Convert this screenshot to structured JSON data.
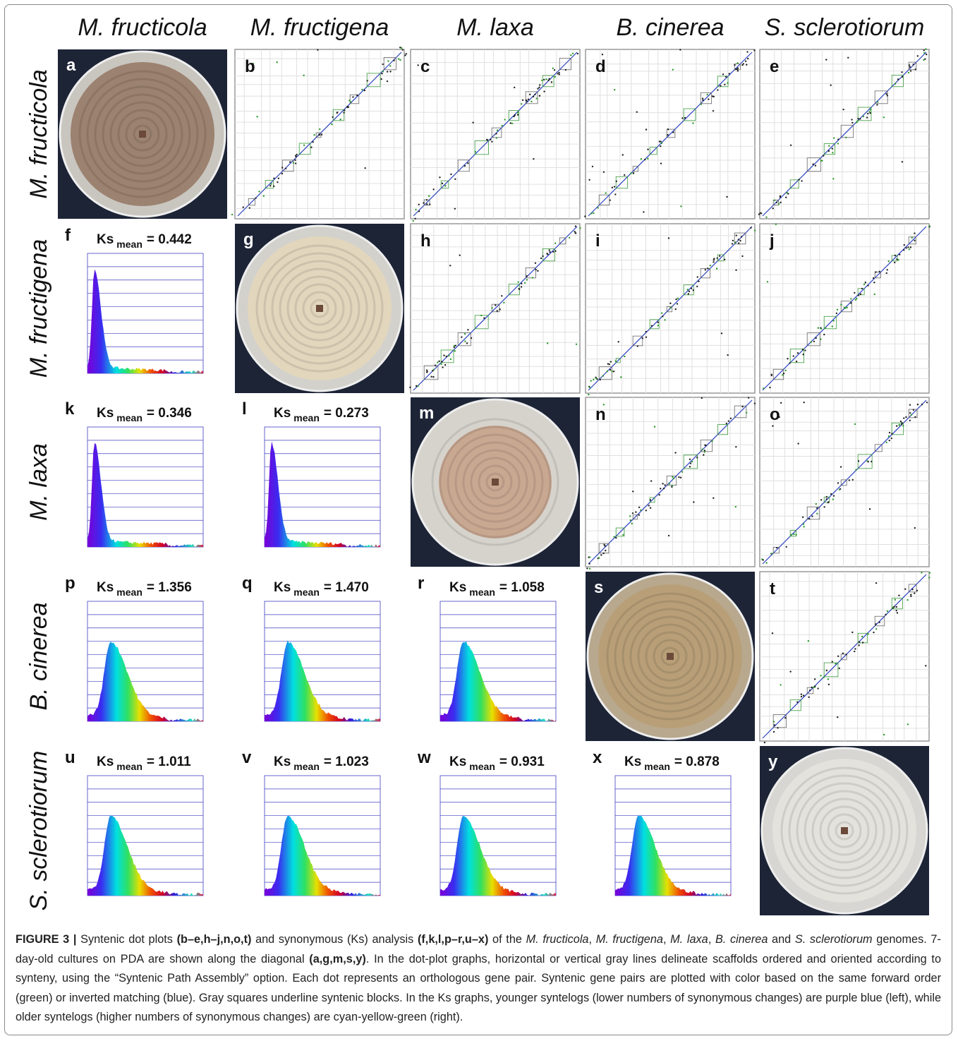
{
  "figure": {
    "column_headers": [
      "M. fructicola",
      "M. fructigena",
      "M. laxa",
      "B. cinerea",
      "S. sclerotiorum"
    ],
    "row_headers": [
      "M. fructicola",
      "M. fructigena",
      "M. laxa",
      "B. cinerea",
      "S. sclerotiorum"
    ],
    "panels": [
      [
        {
          "kind": "photo",
          "letter": "a",
          "plate": "#c9c6c0",
          "colony": "#9c8270"
        },
        {
          "kind": "dotplot",
          "letter": "b"
        },
        {
          "kind": "dotplot",
          "letter": "c"
        },
        {
          "kind": "dotplot",
          "letter": "d"
        },
        {
          "kind": "dotplot",
          "letter": "e"
        }
      ],
      [
        {
          "kind": "ks",
          "letter": "f",
          "symbol": "Ks",
          "sub": "mean",
          "value": "= 0.442"
        },
        {
          "kind": "photo",
          "letter": "g",
          "plate": "#d3d1cc",
          "colony": "#e2d6bd"
        },
        {
          "kind": "dotplot",
          "letter": "h"
        },
        {
          "kind": "dotplot",
          "letter": "i"
        },
        {
          "kind": "dotplot",
          "letter": "j"
        }
      ],
      [
        {
          "kind": "ks",
          "letter": "k",
          "symbol": "Ks",
          "sub": "mean",
          "value": "= 0.346"
        },
        {
          "kind": "ks",
          "letter": "l",
          "symbol": "Ks",
          "sub": "mean",
          "value": "= 0.273"
        },
        {
          "kind": "photo",
          "letter": "m",
          "plate": "#d6d3cd",
          "colony": "#c9a892"
        },
        {
          "kind": "dotplot",
          "letter": "n"
        },
        {
          "kind": "dotplot",
          "letter": "o"
        }
      ],
      [
        {
          "kind": "ks",
          "letter": "p",
          "symbol": "Ks",
          "sub": "mean",
          "value": "= 1.356"
        },
        {
          "kind": "ks",
          "letter": "q",
          "symbol": "Ks",
          "sub": "mean",
          "value": "= 1.470"
        },
        {
          "kind": "ks",
          "letter": "r",
          "symbol": "Ks",
          "sub": "mean",
          "value": "= 1.058"
        },
        {
          "kind": "photo",
          "letter": "s",
          "plate": "#b7a88e",
          "colony": "#b89f78"
        },
        {
          "kind": "dotplot",
          "letter": "t"
        }
      ],
      [
        {
          "kind": "ks",
          "letter": "u",
          "symbol": "Ks",
          "sub": "mean",
          "value": "= 1.011"
        },
        {
          "kind": "ks",
          "letter": "v",
          "symbol": "Ks",
          "sub": "mean",
          "value": "= 1.023"
        },
        {
          "kind": "ks",
          "letter": "w",
          "symbol": "Ks",
          "sub": "mean",
          "value": "= 0.931"
        },
        {
          "kind": "ks",
          "letter": "x",
          "symbol": "Ks",
          "sub": "mean",
          "value": "= 0.878"
        },
        {
          "kind": "photo",
          "letter": "y",
          "plate": "#d8d6d2",
          "colony": "#e4e2dc"
        }
      ]
    ],
    "caption": [
      {
        "text": "FIGURE 3 |",
        "style": "b"
      },
      {
        "text": " Syntenic dot plots ",
        "style": ""
      },
      {
        "text": "(b–e,h–j,n,o,t)",
        "style": "b"
      },
      {
        "text": " and synonymous (Ks) analysis ",
        "style": ""
      },
      {
        "text": "(f,k,l,p–r,u–x)",
        "style": "b"
      },
      {
        "text": " of the ",
        "style": ""
      },
      {
        "text": "M. fructicola",
        "style": "i"
      },
      {
        "text": ", ",
        "style": ""
      },
      {
        "text": "M. fructigena",
        "style": "i"
      },
      {
        "text": ", ",
        "style": ""
      },
      {
        "text": "M. laxa",
        "style": "i"
      },
      {
        "text": ", ",
        "style": ""
      },
      {
        "text": "B. cinerea",
        "style": "i"
      },
      {
        "text": " and ",
        "style": ""
      },
      {
        "text": "S. sclerotiorum",
        "style": "i"
      },
      {
        "text": " genomes. 7-day-old cultures on PDA are shown along the diagonal ",
        "style": ""
      },
      {
        "text": "(a,g,m,s,y)",
        "style": "b"
      },
      {
        "text": ". In the dot-plot graphs, horizontal or vertical gray lines delineate scaffolds ordered and oriented according to synteny, using the “Syntenic Path Assembly” option. Each dot represents an orthologous gene pair. Syntenic gene pairs are plotted with color based on the same forward order (green) or inverted matching (blue). Gray squares underline syntenic blocks. In the Ks graphs, younger syntelogs (lower numbers of synonymous changes) are purple blue (left), while older syntelogs (higher numbers of synonymous changes) are cyan-yellow-green (right).",
        "style": ""
      }
    ]
  }
}
